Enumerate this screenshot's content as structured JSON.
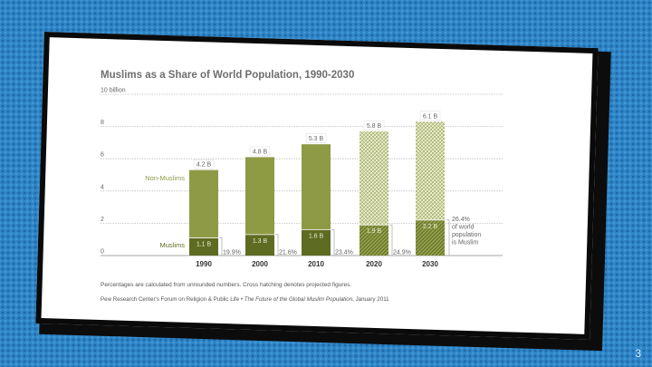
{
  "slide": {
    "page_number": "3"
  },
  "chart_data": {
    "type": "bar",
    "stacked": true,
    "title": "Muslims as a Share of World Population, 1990-2030",
    "categories": [
      "1990",
      "2000",
      "2010",
      "2020",
      "2030"
    ],
    "projected": [
      false,
      false,
      false,
      true,
      true
    ],
    "series": [
      {
        "name": "Muslims",
        "values": [
          1.1,
          1.3,
          1.6,
          1.9,
          2.2
        ],
        "labels": [
          "1.1 B",
          "1.3 B",
          "1.6 B",
          "1.9 B",
          "2.2 B"
        ]
      },
      {
        "name": "Non-Muslims",
        "values": [
          4.2,
          4.8,
          5.3,
          5.8,
          6.1
        ],
        "labels": [
          "4.2 B",
          "4.8 B",
          "5.3 B",
          "5.8 B",
          "6.1 B"
        ]
      }
    ],
    "share_labels": [
      "19.9%",
      "21.6%",
      "23.4%",
      "24.9%"
    ],
    "share_last": [
      "26.4%",
      "of world",
      "population",
      "is Muslim"
    ],
    "yticks": [
      {
        "value": 0,
        "label": "0"
      },
      {
        "value": 2,
        "label": "2"
      },
      {
        "value": 4,
        "label": "4"
      },
      {
        "value": 6,
        "label": "6"
      },
      {
        "value": 8,
        "label": "8"
      },
      {
        "value": 10,
        "label": "10 billion"
      }
    ],
    "ylim": [
      0,
      10
    ],
    "grid": true,
    "footnote": "Percentages are calculated from unrounded numbers. Cross hatching denotes projected figures.",
    "source_prefix": "Pew Research Center's Forum on Religion & Public Life • ",
    "source_title": "The Future of the Global Muslim Population",
    "source_suffix": ", January 2011",
    "colors": {
      "muslim": "#5e6b22",
      "non_muslim": "#8f9a45",
      "muslim_projected": "#6a7a2a",
      "non_muslim_projected": "#b9c27d",
      "grid": "#b0b0b0",
      "text": "#555555"
    }
  }
}
